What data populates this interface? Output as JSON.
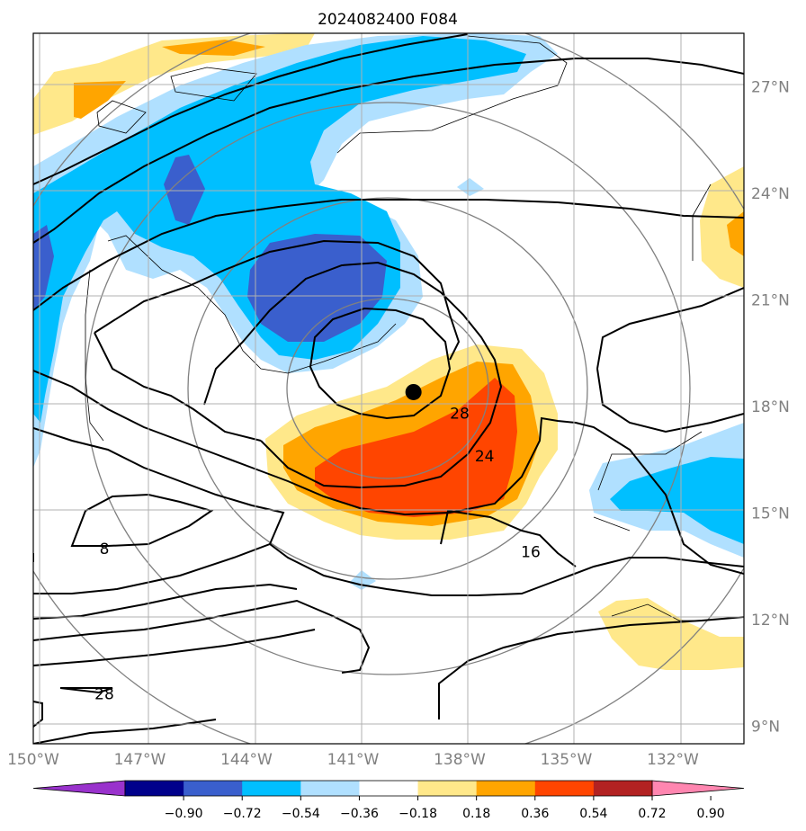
{
  "chart_data": {
    "type": "contour",
    "title": "2024082400 F084",
    "x_ticks": [
      "150°W",
      "147°W",
      "144°W",
      "141°W",
      "138°W",
      "135°W",
      "132°W"
    ],
    "y_ticks": [
      "9°N",
      "12°N",
      "15°N",
      "18°N",
      "21°N",
      "24°N",
      "27°N"
    ],
    "lon_range": [
      -150.0,
      -130.0
    ],
    "lat_range": [
      8.5,
      28.5
    ],
    "grid": true,
    "storm_center": {
      "lon": -139.3,
      "lat": 18.4
    },
    "contour_labels": [
      {
        "text": "28",
        "lon": -138.0,
        "lat": 17.8
      },
      {
        "text": "24",
        "lon": -137.3,
        "lat": 16.6
      },
      {
        "text": "16",
        "lon": -136.0,
        "lat": 13.9
      },
      {
        "text": "8",
        "lon": -148.0,
        "lat": 14.0
      },
      {
        "text": "28",
        "lon": -148.0,
        "lat": 9.9
      }
    ],
    "colorbar": {
      "tick_labels": [
        "−0.90",
        "−0.72",
        "−0.54",
        "−0.36",
        "−0.18",
        "0.18",
        "0.36",
        "0.54",
        "0.72",
        "0.90"
      ],
      "colors": [
        "#9932cc",
        "#00008b",
        "#3a5fcd",
        "#00bfff",
        "#b0e0ff",
        "#ffffff",
        "#ffe88a",
        "#ffa500",
        "#ff4500",
        "#b22222",
        "#ff86b0"
      ]
    },
    "shading_levels": [
      "#3a5fcd",
      "#00bfff",
      "#b0e0ff",
      "#ffe88a",
      "#ffa500",
      "#ff4500"
    ]
  }
}
